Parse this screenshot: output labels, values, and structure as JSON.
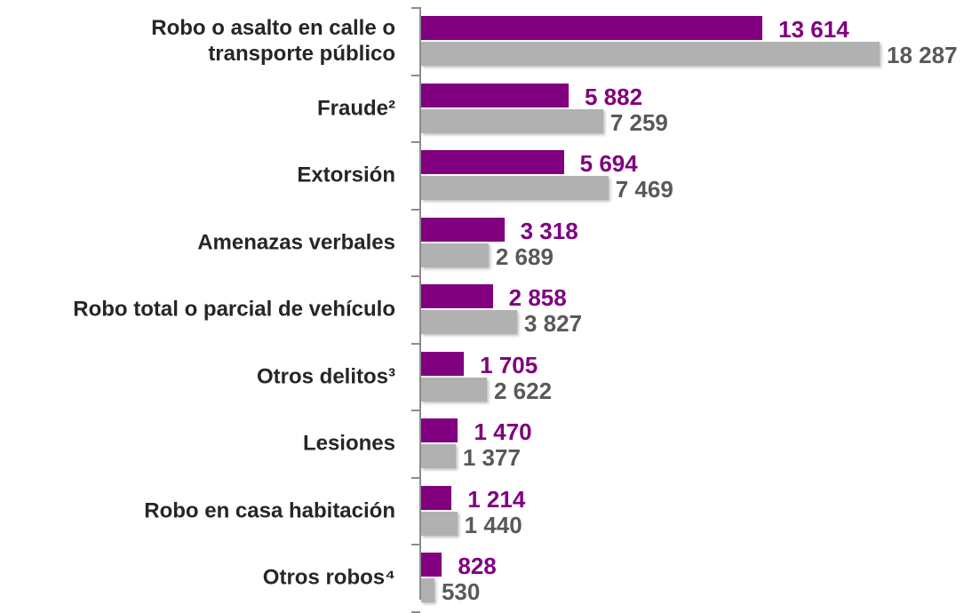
{
  "chart_data": {
    "type": "bar",
    "orientation": "horizontal",
    "categories": [
      "Robo o asalto en calle o\ntransporte público",
      "Fraude²",
      "Extorsión",
      "Amenazas verbales",
      "Robo total o parcial de vehículo",
      "Otros delitos³",
      "Lesiones",
      "Robo en casa habitación",
      "Otros robos⁴"
    ],
    "series": [
      {
        "color": "#800080",
        "label_color": "#800080",
        "values": [
          13614,
          5882,
          5694,
          3318,
          2858,
          1705,
          1470,
          1214,
          828
        ],
        "value_labels": [
          "13 614",
          "5 882",
          "5 694",
          "3 318",
          "2 858",
          "1 705",
          "1 470",
          "1 214",
          "828"
        ]
      },
      {
        "color": "#b1b1b1",
        "label_color": "#595959",
        "values": [
          18287,
          7259,
          7469,
          2689,
          3827,
          2622,
          1377,
          1440,
          530
        ],
        "value_labels": [
          "18 287",
          "7 259",
          "7 469",
          "2 689",
          "3 827",
          "2 622",
          "1 377",
          "1 440",
          "530"
        ]
      }
    ]
  }
}
